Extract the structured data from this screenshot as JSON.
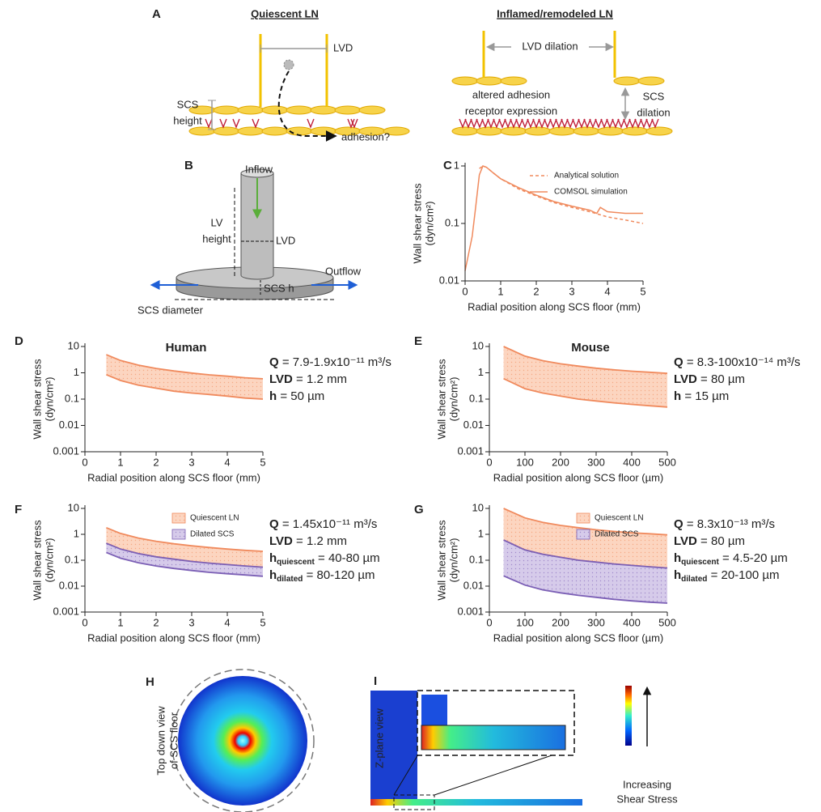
{
  "figure": {
    "panel_labels": [
      "A",
      "B",
      "C",
      "D",
      "E",
      "F",
      "G",
      "H",
      "I"
    ],
    "a": {
      "left_title": "Quiescent LN",
      "right_title": "Inflamed/remodeled LN",
      "lvd": "LVD",
      "scs_height": [
        "SCS",
        "height"
      ],
      "adhesion": "adhesion?",
      "lvd_dilation": "LVD dilation",
      "altered": [
        "altered adhesion",
        "receptor expression"
      ],
      "scs_dilation": [
        "SCS",
        "dilation"
      ]
    },
    "b": {
      "inflow": "Inflow",
      "lv_height": [
        "LV",
        "height"
      ],
      "lvd": "LVD",
      "outflow": "Outflow",
      "scs_h": "SCS h",
      "scs_diameter": "SCS diameter"
    },
    "h": {
      "label_lines": [
        "Top down view",
        "of SCS floor"
      ]
    },
    "i": {
      "label": "Z-plane view",
      "colorbar_label": [
        "Increasing",
        "Shear Stress"
      ]
    }
  },
  "chart_data": [
    {
      "type": "line",
      "xlabel": "Radial position along SCS floor (mm)",
      "ylabel": [
        "Wall shear stress",
        "(dyn/cm²)"
      ],
      "xlim": [
        0,
        5
      ],
      "xticks": [
        0,
        1,
        2,
        3,
        4,
        5
      ],
      "ylim": [
        0.01,
        1
      ],
      "yticks": [
        0.01,
        0.1,
        1
      ],
      "log_y": true,
      "legend": "upper-right",
      "series": [
        {
          "name": "Analytical solution",
          "color": "#f08a5d",
          "dashed": true,
          "x": [
            0.4,
            0.5,
            0.6,
            0.8,
            1,
            1.5,
            2,
            2.5,
            3,
            3.5,
            4,
            4.5,
            5
          ],
          "values": [
            0.9,
            1,
            0.95,
            0.75,
            0.6,
            0.4,
            0.3,
            0.23,
            0.19,
            0.16,
            0.13,
            0.115,
            0.1
          ]
        },
        {
          "name": "COMSOL simulation",
          "color": "#f08a5d",
          "dashed": false,
          "x": [
            0,
            0.1,
            0.2,
            0.3,
            0.4,
            0.5,
            0.6,
            0.8,
            1,
            1.5,
            2,
            2.5,
            3,
            3.5,
            3.7,
            3.8,
            4,
            4.5,
            5
          ],
          "values": [
            0.015,
            0.03,
            0.06,
            0.2,
            0.7,
            1,
            0.95,
            0.75,
            0.6,
            0.42,
            0.31,
            0.24,
            0.2,
            0.17,
            0.15,
            0.19,
            0.16,
            0.15,
            0.15
          ]
        }
      ]
    },
    {
      "type": "band",
      "title": "Human",
      "xlabel": "Radial position along SCS floor (mm)",
      "ylabel": [
        "Wall shear stress",
        "(dyn/cm²)"
      ],
      "xlim": [
        0,
        5
      ],
      "xticks": [
        0,
        1,
        2,
        3,
        4,
        5
      ],
      "ylim": [
        0.001,
        10
      ],
      "yticks": [
        0.001,
        0.01,
        0.1,
        1,
        10
      ],
      "log_y": true,
      "x": [
        0.6,
        1,
        1.5,
        2,
        2.5,
        3,
        3.5,
        4,
        4.5,
        5
      ],
      "bands": [
        {
          "color": "#f08a5d",
          "fill": "#fcd5c0",
          "upper": [
            4.9,
            2.94,
            1.96,
            1.47,
            1.18,
            0.98,
            0.84,
            0.74,
            0.65,
            0.59
          ],
          "lower": [
            0.85,
            0.51,
            0.34,
            0.26,
            0.2,
            0.17,
            0.15,
            0.13,
            0.11,
            0.1
          ]
        }
      ],
      "annotations": [
        {
          "term": "Q",
          "text": " = 7.9-1.9x10⁻¹¹ m³/s"
        },
        {
          "term": "LVD",
          "text": " = 1.2 mm"
        },
        {
          "term": "h",
          "text": " = 50 µm"
        }
      ]
    },
    {
      "type": "band",
      "title": "Mouse",
      "xlabel": "Radial position along SCS floor (µm)",
      "ylabel": [
        "Wall shear stress",
        "(dyn/cm²)"
      ],
      "xlim": [
        0,
        500
      ],
      "xticks": [
        0,
        100,
        200,
        300,
        400,
        500
      ],
      "ylim": [
        0.001,
        10
      ],
      "yticks": [
        0.001,
        0.01,
        0.1,
        1,
        10
      ],
      "log_y": true,
      "x": [
        40,
        100,
        150,
        200,
        250,
        300,
        350,
        400,
        450,
        500
      ],
      "bands": [
        {
          "color": "#f08a5d",
          "fill": "#fcd5c0",
          "upper": [
            10,
            4.3,
            2.9,
            2.2,
            1.8,
            1.5,
            1.3,
            1.15,
            1.05,
            0.95
          ],
          "lower": [
            0.6,
            0.25,
            0.17,
            0.13,
            0.1,
            0.085,
            0.072,
            0.063,
            0.056,
            0.05
          ]
        }
      ],
      "annotations": [
        {
          "term": "Q",
          "text": " = 8.3-100x10⁻¹⁴ m³/s"
        },
        {
          "term": "LVD",
          "text": " = 80 µm"
        },
        {
          "term": "h",
          "text": " = 15 µm"
        }
      ]
    },
    {
      "type": "band",
      "xlabel": "Radial position along SCS floor (mm)",
      "ylabel": [
        "Wall shear stress",
        "(dyn/cm²)"
      ],
      "xlim": [
        0,
        5
      ],
      "xticks": [
        0,
        1,
        2,
        3,
        4,
        5
      ],
      "ylim": [
        0.001,
        10
      ],
      "yticks": [
        0.001,
        0.01,
        0.1,
        1,
        10
      ],
      "log_y": true,
      "legend": "upper-right",
      "x": [
        0.6,
        1,
        1.5,
        2,
        2.5,
        3,
        3.5,
        4,
        4.5,
        5
      ],
      "bands": [
        {
          "name": "Quiescent LN",
          "color": "#f08a5d",
          "fill": "#fcd5c0",
          "upper": [
            1.8,
            1.08,
            0.72,
            0.54,
            0.43,
            0.36,
            0.31,
            0.27,
            0.24,
            0.22
          ],
          "lower": [
            0.45,
            0.27,
            0.18,
            0.135,
            0.11,
            0.09,
            0.077,
            0.068,
            0.06,
            0.054
          ]
        },
        {
          "name": "Dilated SCS",
          "color": "#7b5fb5",
          "fill": "#d6cbea",
          "upper": [
            0.45,
            0.27,
            0.18,
            0.135,
            0.11,
            0.09,
            0.077,
            0.068,
            0.06,
            0.054
          ],
          "lower": [
            0.2,
            0.12,
            0.08,
            0.06,
            0.048,
            0.04,
            0.034,
            0.03,
            0.027,
            0.024
          ]
        }
      ],
      "annotations": [
        {
          "term": "Q",
          "text": " = 1.45x10⁻¹¹ m³/s"
        },
        {
          "term": "LVD",
          "text": " = 1.2 mm"
        },
        {
          "term": "h",
          "sub": "quiescent",
          "text": " = 40-80 µm"
        },
        {
          "term": "h",
          "sub": "dilated",
          "text": " = 80-120 µm"
        }
      ]
    },
    {
      "type": "band",
      "xlabel": "Radial position along SCS floor (µm)",
      "ylabel": [
        "Wall shear stress",
        "(dyn/cm²)"
      ],
      "xlim": [
        0,
        500
      ],
      "xticks": [
        0,
        100,
        200,
        300,
        400,
        500
      ],
      "ylim": [
        0.001,
        10
      ],
      "yticks": [
        0.001,
        0.01,
        0.1,
        1,
        10
      ],
      "log_y": true,
      "legend": "upper-right",
      "x": [
        40,
        100,
        150,
        200,
        250,
        300,
        350,
        400,
        450,
        500
      ],
      "bands": [
        {
          "name": "Quiescent LN",
          "color": "#f08a5d",
          "fill": "#fcd5c0",
          "upper": [
            10,
            4.3,
            2.9,
            2.2,
            1.8,
            1.5,
            1.3,
            1.15,
            1.05,
            0.95
          ],
          "lower": [
            0.6,
            0.25,
            0.17,
            0.13,
            0.1,
            0.085,
            0.072,
            0.063,
            0.056,
            0.05
          ]
        },
        {
          "name": "Dilated SCS",
          "color": "#7b5fb5",
          "fill": "#d6cbea",
          "upper": [
            0.6,
            0.25,
            0.17,
            0.13,
            0.1,
            0.085,
            0.072,
            0.063,
            0.056,
            0.05
          ],
          "lower": [
            0.025,
            0.011,
            0.0072,
            0.0055,
            0.0044,
            0.0037,
            0.0031,
            0.0027,
            0.0024,
            0.0022
          ]
        }
      ],
      "annotations": [
        {
          "term": "Q",
          "text": " = 8.3x10⁻¹³ m³/s"
        },
        {
          "term": "LVD",
          "text": " = 80 µm"
        },
        {
          "term": "h",
          "sub": "quiescent",
          "text": " = 4.5-20 µm"
        },
        {
          "term": "h",
          "sub": "dilated",
          "text": " = 20-100 µm"
        }
      ]
    }
  ]
}
